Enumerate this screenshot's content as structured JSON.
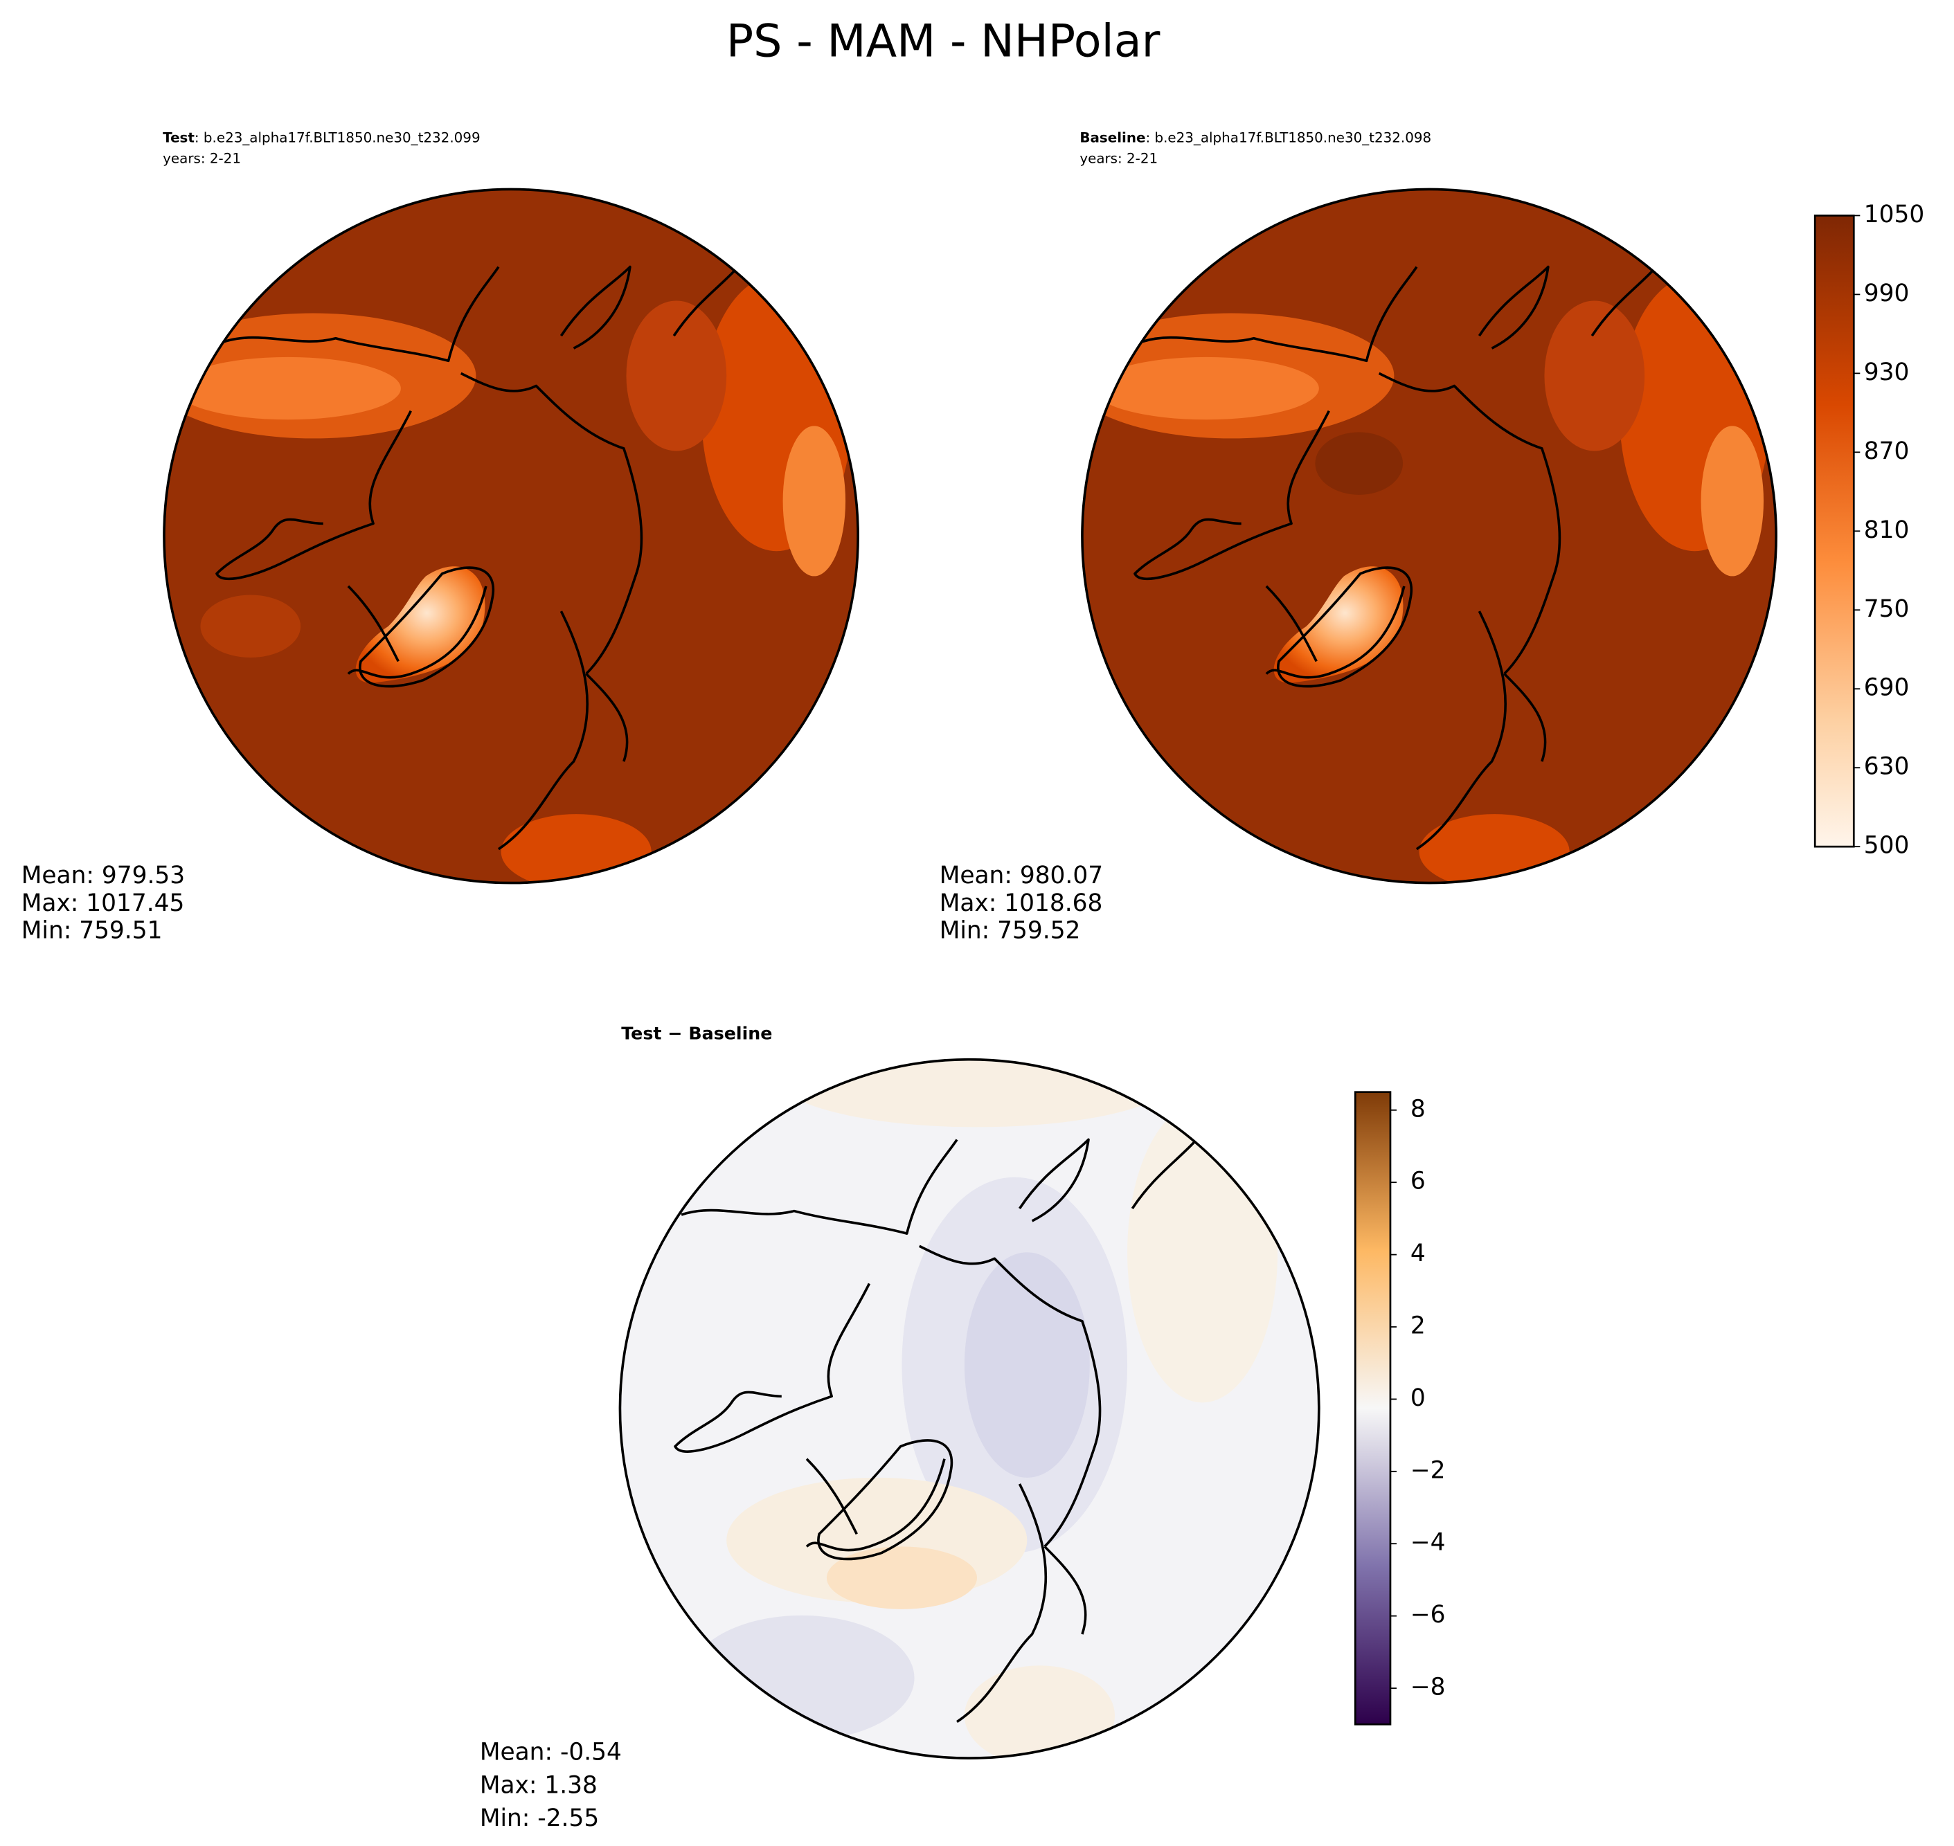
{
  "title": "PS - MAM - NHPolar",
  "panels": [
    {
      "label": "Test",
      "case": ": b.e23_alpha17f.BLT1850.ne30_t232.099",
      "years": "years: 2-21",
      "stats": [
        "Mean: 979.53",
        "Max: 1017.45",
        "Min: 759.51"
      ]
    },
    {
      "label": "Baseline",
      "case": ": b.e23_alpha17f.BLT1850.ne30_t232.098",
      "years": "years: 2-21",
      "stats": [
        "Mean: 980.07",
        "Max: 1018.68",
        "Min: 759.52"
      ]
    },
    {
      "label": "Test − Baseline",
      "stats": [
        "Mean: -0.54",
        "Max:  1.38",
        "Min: -2.55"
      ]
    }
  ],
  "colorbar": {
    "ticks": [
      500,
      630,
      690,
      750,
      810,
      870,
      930,
      990,
      1050
    ]
  },
  "diff_colorbar": {
    "ylim": [
      -9,
      8.5
    ],
    "ticks": [
      {
        "value": -8,
        "label": "−8"
      },
      {
        "value": -6,
        "label": "−6"
      },
      {
        "value": -4,
        "label": "−4"
      },
      {
        "value": -2,
        "label": "−2"
      },
      0,
      2,
      4,
      6,
      8
    ]
  }
}
